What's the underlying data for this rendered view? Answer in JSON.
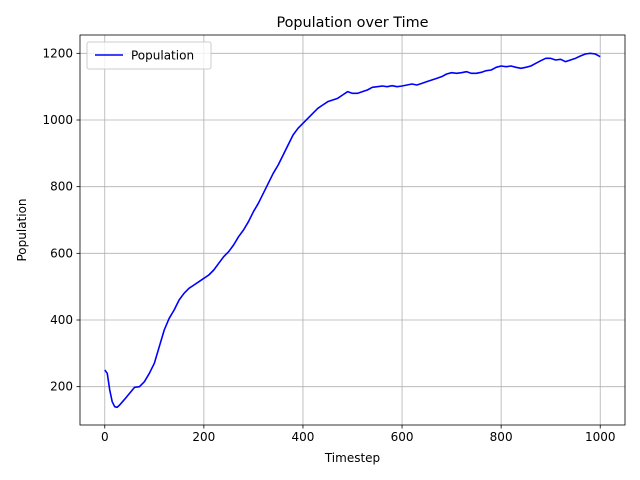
{
  "chart_data": {
    "type": "line",
    "title": "Population over Time",
    "xlabel": "Timestep",
    "ylabel": "Population",
    "xlim": [
      -50,
      1050
    ],
    "ylim": [
      85,
      1255
    ],
    "xticks": [
      0,
      200,
      400,
      600,
      800,
      1000
    ],
    "yticks": [
      200,
      400,
      600,
      800,
      1000,
      1200
    ],
    "grid": true,
    "legend": "upper-left",
    "series": [
      {
        "name": "Population",
        "color": "#0000ff",
        "x": [
          0,
          5,
          10,
          15,
          20,
          25,
          30,
          40,
          50,
          60,
          70,
          80,
          90,
          100,
          110,
          120,
          130,
          140,
          150,
          160,
          170,
          180,
          190,
          200,
          210,
          220,
          230,
          240,
          250,
          260,
          270,
          280,
          290,
          300,
          310,
          320,
          330,
          340,
          350,
          360,
          370,
          380,
          390,
          400,
          410,
          420,
          430,
          440,
          450,
          460,
          470,
          480,
          490,
          500,
          510,
          520,
          530,
          540,
          550,
          560,
          570,
          580,
          590,
          600,
          610,
          620,
          630,
          640,
          650,
          660,
          670,
          680,
          690,
          700,
          710,
          720,
          730,
          740,
          750,
          760,
          770,
          780,
          790,
          800,
          810,
          820,
          830,
          840,
          850,
          860,
          870,
          880,
          890,
          900,
          910,
          920,
          930,
          940,
          950,
          960,
          970,
          980,
          990,
          1000
        ],
        "y": [
          250,
          240,
          190,
          155,
          140,
          138,
          145,
          162,
          180,
          198,
          200,
          215,
          240,
          270,
          320,
          370,
          405,
          430,
          460,
          480,
          495,
          505,
          515,
          525,
          535,
          550,
          570,
          590,
          605,
          625,
          650,
          670,
          695,
          725,
          750,
          780,
          810,
          840,
          865,
          895,
          925,
          955,
          975,
          990,
          1005,
          1020,
          1035,
          1045,
          1055,
          1060,
          1065,
          1075,
          1085,
          1080,
          1080,
          1085,
          1090,
          1098,
          1100,
          1102,
          1100,
          1103,
          1100,
          1102,
          1105,
          1108,
          1105,
          1110,
          1115,
          1120,
          1125,
          1130,
          1138,
          1142,
          1140,
          1142,
          1145,
          1140,
          1140,
          1143,
          1148,
          1150,
          1158,
          1162,
          1160,
          1162,
          1158,
          1155,
          1158,
          1162,
          1170,
          1178,
          1185,
          1185,
          1180,
          1182,
          1175,
          1180,
          1185,
          1192,
          1198,
          1200,
          1198,
          1190
        ]
      }
    ]
  }
}
